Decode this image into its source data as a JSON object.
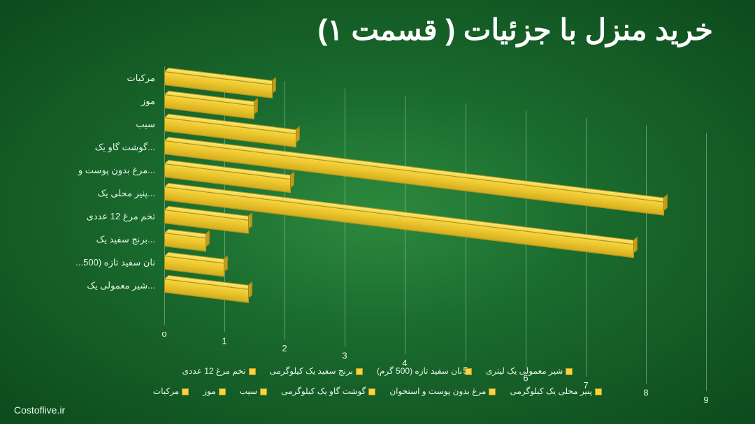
{
  "title": "خرید منزل با جزئیات ( قسمت ۱)",
  "attribution": "Costoflive.ir",
  "chart": {
    "type": "bar",
    "orientation": "horizontal",
    "xlim": [
      0,
      9
    ],
    "xtick_step": 1,
    "xticks": [
      "o",
      "1",
      "2",
      "3",
      "4",
      "5",
      "6",
      "7",
      "8",
      "9"
    ],
    "bar_color": "#f7d441",
    "bar_top_color": "#fce87a",
    "bar_side_color": "#b8961a",
    "bar_border_color": "#b8961a",
    "grid_color": "rgba(255,255,255,0.35)",
    "background_gradient": [
      "#2d8a3e",
      "#1a6b2e",
      "#0d4a1c"
    ],
    "title_color": "#ffffff",
    "title_fontsize": 42,
    "label_color": "#e8f5ea",
    "label_fontsize": 13,
    "skew_deg": 7,
    "items": [
      {
        "label": "مرکبات",
        "value": 1.8
      },
      {
        "label": "موز",
        "value": 1.5
      },
      {
        "label": "سیب",
        "value": 2.2
      },
      {
        "label": "...گوشت گاو یک",
        "value": 8.3
      },
      {
        "label": "...مرغ بدون پوست و",
        "value": 2.1
      },
      {
        "label": "...پنیر محلی یک",
        "value": 7.8
      },
      {
        "label": "تخم مرغ 12 عددی",
        "value": 1.4
      },
      {
        "label": "...برنج سفید یک",
        "value": 0.7
      },
      {
        "label": "نان سفید تازه (500...",
        "value": 1.0
      },
      {
        "label": "...شیر معمولی یک",
        "value": 1.4
      }
    ]
  },
  "legend": {
    "swatch_color": "#f7d441",
    "text_color": "#e8f5ea",
    "fontsize": 12,
    "items": [
      "شیر معمولی یک لیتری",
      "نان سفید تازه (500 گرم)",
      "برنج سفید یک کیلوگرمی",
      "تخم مرغ 12 عددی",
      "پنیر محلی یک کیلوگرمی",
      "مرغ بدون پوست و استخوان",
      "گوشت گاو یک کیلوگرمی",
      "سیب",
      "موز",
      "مرکبات"
    ]
  }
}
